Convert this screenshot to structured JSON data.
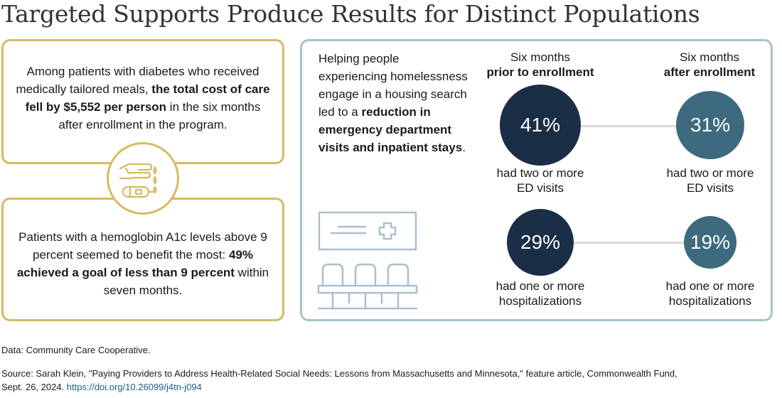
{
  "title": "Targeted Supports Produce Results for Distinct Populations",
  "diabetes_panel": {
    "pre": "Among patients with diabetes who received medically tailored meals, ",
    "bold": "the total cost of care fell by $5,552 per person",
    "post": " in the six months after enrollment in the program."
  },
  "a1c_panel": {
    "pre": "Patients with a hemoglobin A1c levels above 9 percent seemed to benefit the most: ",
    "bold": "49% achieved a goal of less than 9 percent",
    "post": " within seven months."
  },
  "homeless_panel": {
    "pre": "Helping people experiencing homelessness engage in a housing search led to a ",
    "bold": "reduction in emergency department visits and inpatient stays",
    "post": "."
  },
  "columns": {
    "prior": {
      "line1": "Six months",
      "line2": "prior to enrollment"
    },
    "after": {
      "line1": "Six months",
      "line2": "after enrollment"
    }
  },
  "metrics": {
    "ed": {
      "prior_value": "41%",
      "after_value": "31%",
      "prior_caption_1": "had two or more",
      "prior_caption_2": "ED visits",
      "after_caption_1": "had two or more",
      "after_caption_2": "ED visits"
    },
    "hosp": {
      "prior_value": "29%",
      "after_value": "19%",
      "prior_caption_1": "had one or more",
      "prior_caption_2": "hospitalizations",
      "after_caption_1": "had one or more",
      "after_caption_2": "hospitalizations"
    }
  },
  "footer": {
    "data": "Data: Community Care Cooperative.",
    "source_line1": "Source: Sarah Klein, \"Paying Providers to Address Health-Related Social Needs: Lessons from Massachusetts and Minnesota,\" feature article, Commonwealth Fund,",
    "source_line2": "Sept. 26, 2024. ",
    "doi": "https://doi.org/10.26099/j4tn-j094"
  },
  "colors": {
    "gold": "#d9b960",
    "blue_border": "#a8c0cf",
    "dark_navy": "#1a2e45",
    "teal": "#3d6a7e"
  },
  "icons": [
    "hand-meal-icon",
    "hospital-waiting-room-icon"
  ]
}
